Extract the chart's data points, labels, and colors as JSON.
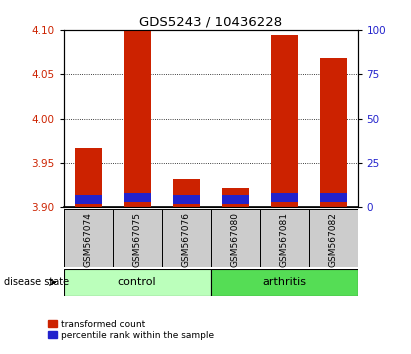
{
  "title": "GDS5243 / 10436228",
  "samples": [
    "GSM567074",
    "GSM567075",
    "GSM567076",
    "GSM567080",
    "GSM567081",
    "GSM567082"
  ],
  "ylim": [
    3.9,
    4.1
  ],
  "y_left_ticks": [
    3.9,
    3.95,
    4.0,
    4.05,
    4.1
  ],
  "y_right_ticks": [
    0,
    25,
    50,
    75,
    100
  ],
  "baseline": 3.9,
  "red_tops": [
    3.967,
    4.1,
    3.932,
    3.922,
    4.095,
    4.068
  ],
  "blue_tops": [
    3.9135,
    3.9155,
    3.9135,
    3.9135,
    3.9155,
    3.9155
  ],
  "blue_bottoms": [
    3.904,
    3.906,
    3.904,
    3.904,
    3.906,
    3.906
  ],
  "bar_width": 0.55,
  "red_color": "#CC2200",
  "blue_color": "#2222CC",
  "left_tick_color": "#CC2200",
  "right_tick_color": "#2222CC",
  "grid_ticks": [
    3.95,
    4.0,
    4.05
  ],
  "color_control": "#BBFFBB",
  "color_arthritis": "#55DD55",
  "color_xtickcell": "#CCCCCC",
  "legend_red_label": "transformed count",
  "legend_blue_label": "percentile rank within the sample"
}
